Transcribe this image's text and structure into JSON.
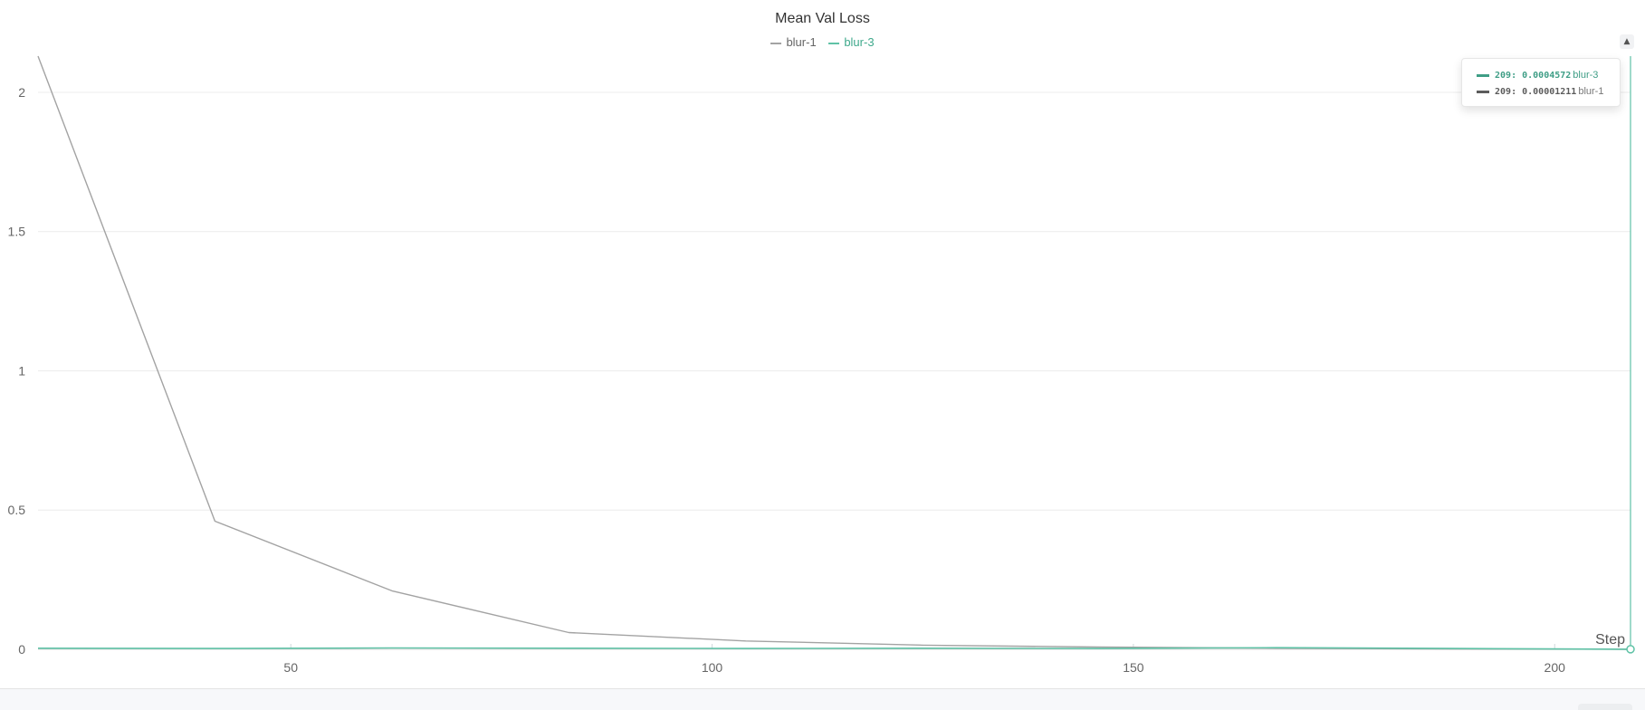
{
  "chart_data": {
    "type": "line",
    "title": "Mean Val Loss",
    "xlabel": "Step",
    "ylabel": "",
    "xlim": [
      20,
      209
    ],
    "ylim": [
      0,
      2.13
    ],
    "x_ticks": [
      50,
      100,
      150,
      200
    ],
    "y_ticks": [
      0,
      0.5,
      1,
      1.5,
      2
    ],
    "grid": true,
    "legend_position": "top-center",
    "series": [
      {
        "name": "blur-1",
        "color": "#a3a3a3",
        "x": [
          20,
          41,
          62,
          83,
          104,
          125,
          146,
          167,
          188,
          209
        ],
        "y": [
          2.13,
          0.46,
          0.21,
          0.06,
          0.03,
          0.015,
          0.008,
          0.004,
          0.001,
          1.211e-05
        ]
      },
      {
        "name": "blur-3",
        "color": "#5fc2a6",
        "x": [
          20,
          41,
          62,
          83,
          104,
          125,
          146,
          167,
          188,
          209
        ],
        "y": [
          0.004,
          0.003,
          0.005,
          0.004,
          0.003,
          0.004,
          0.003,
          0.006,
          0.003,
          0.0004572
        ]
      }
    ]
  },
  "tooltip": {
    "rows": [
      {
        "step": "209",
        "value": "0.0004572",
        "name": "blur-3",
        "color": "#3f9e86"
      },
      {
        "step": "209",
        "value": "0.00001211",
        "name": "blur-1",
        "color": "#5c5c5c"
      }
    ]
  },
  "settings_icon": "sort-arrows-icon"
}
